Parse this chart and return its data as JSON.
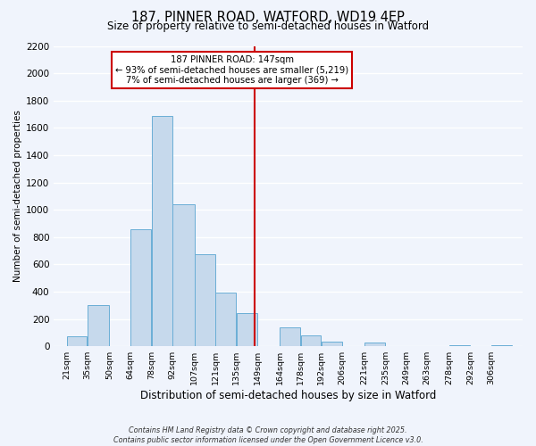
{
  "title": "187, PINNER ROAD, WATFORD, WD19 4EP",
  "subtitle": "Size of property relative to semi-detached houses in Watford",
  "xlabel": "Distribution of semi-detached houses by size in Watford",
  "ylabel": "Number of semi-detached properties",
  "bin_labels": [
    "21sqm",
    "35sqm",
    "50sqm",
    "64sqm",
    "78sqm",
    "92sqm",
    "107sqm",
    "121sqm",
    "135sqm",
    "149sqm",
    "164sqm",
    "178sqm",
    "192sqm",
    "206sqm",
    "221sqm",
    "235sqm",
    "249sqm",
    "263sqm",
    "278sqm",
    "292sqm",
    "306sqm"
  ],
  "bin_edges": [
    21,
    35,
    50,
    64,
    78,
    92,
    107,
    121,
    135,
    149,
    164,
    178,
    192,
    206,
    221,
    235,
    249,
    263,
    278,
    292,
    306
  ],
  "bar_heights": [
    75,
    305,
    0,
    855,
    1690,
    1040,
    675,
    395,
    245,
    0,
    140,
    80,
    35,
    0,
    30,
    0,
    0,
    0,
    10,
    0,
    5
  ],
  "bar_color": "#c6d9ec",
  "bar_edge_color": "#6aaed6",
  "property_value": 147,
  "vline_color": "#cc0000",
  "annotation_text_line1": "187 PINNER ROAD: 147sqm",
  "annotation_text_line2": "← 93% of semi-detached houses are smaller (5,219)",
  "annotation_text_line3": "7% of semi-detached houses are larger (369) →",
  "annotation_box_color": "#ffffff",
  "annotation_box_edge": "#cc0000",
  "ylim": [
    0,
    2200
  ],
  "yticks": [
    0,
    200,
    400,
    600,
    800,
    1000,
    1200,
    1400,
    1600,
    1800,
    2000,
    2200
  ],
  "background_color": "#f0f4fc",
  "grid_color": "#ffffff",
  "footer_line1": "Contains HM Land Registry data © Crown copyright and database right 2025.",
  "footer_line2": "Contains public sector information licensed under the Open Government Licence v3.0."
}
